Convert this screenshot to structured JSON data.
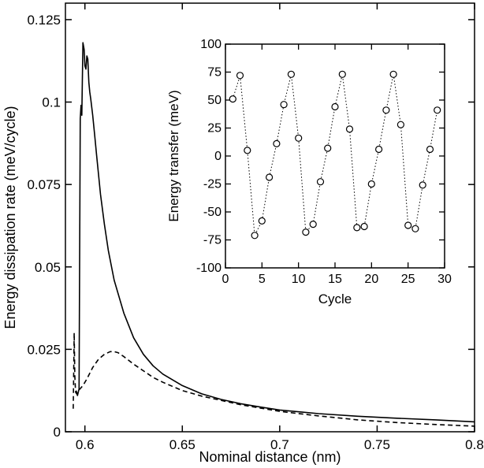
{
  "chart_data": [
    {
      "type": "line",
      "title": "",
      "xlabel": "Nominal distance (nm)",
      "ylabel": "Energy dissipation rate (meV/cycle)",
      "xlim": [
        0.59,
        0.8
      ],
      "ylim": [
        0,
        0.13
      ],
      "xticks": [
        0.6,
        0.65,
        0.7,
        0.75,
        0.8
      ],
      "xtick_labels": [
        "0.6",
        "0.65",
        "0.7",
        "0.75",
        "0.8"
      ],
      "yticks": [
        0,
        0.025,
        0.05,
        0.075,
        0.1,
        0.125
      ],
      "ytick_labels": [
        "0",
        "0.025",
        "0.05",
        "0.075",
        "0.1",
        "0.125"
      ],
      "grid": false,
      "legend": "none",
      "series": [
        {
          "name": "solid",
          "style": "solid",
          "color": "#000000",
          "x": [
            0.5955,
            0.5962,
            0.597,
            0.5976,
            0.598,
            0.5984,
            0.599,
            0.5996,
            0.6,
            0.6005,
            0.601,
            0.6015,
            0.602,
            0.6025,
            0.603,
            0.604,
            0.605,
            0.606,
            0.607,
            0.608,
            0.61,
            0.612,
            0.615,
            0.62,
            0.625,
            0.63,
            0.635,
            0.64,
            0.65,
            0.66,
            0.67,
            0.68,
            0.69,
            0.7,
            0.72,
            0.74,
            0.76,
            0.78,
            0.8
          ],
          "y": [
            0.0125,
            0.011,
            0.013,
            0.095,
            0.099,
            0.096,
            0.118,
            0.116,
            0.111,
            0.11,
            0.114,
            0.113,
            0.106,
            0.103,
            0.101,
            0.096,
            0.09,
            0.084,
            0.078,
            0.072,
            0.063,
            0.055,
            0.046,
            0.036,
            0.0285,
            0.0235,
            0.02,
            0.0175,
            0.014,
            0.0115,
            0.0098,
            0.0085,
            0.0075,
            0.0066,
            0.0055,
            0.0047,
            0.0041,
            0.0036,
            0.003
          ]
        },
        {
          "name": "dashed",
          "style": "dashed",
          "color": "#000000",
          "x": [
            0.594,
            0.5942,
            0.5945,
            0.5948,
            0.5952,
            0.5958,
            0.5965,
            0.5975,
            0.599,
            0.601,
            0.604,
            0.607,
            0.61,
            0.613,
            0.615,
            0.617,
            0.62,
            0.625,
            0.63,
            0.635,
            0.64,
            0.65,
            0.66,
            0.67,
            0.68,
            0.69,
            0.7,
            0.72,
            0.74,
            0.76,
            0.78,
            0.8
          ],
          "y": [
            0.007,
            0.016,
            0.03,
            0.017,
            0.012,
            0.0115,
            0.0125,
            0.013,
            0.014,
            0.016,
            0.0195,
            0.022,
            0.0235,
            0.0243,
            0.0243,
            0.024,
            0.0228,
            0.0205,
            0.0185,
            0.0165,
            0.015,
            0.0125,
            0.0108,
            0.0095,
            0.0082,
            0.0072,
            0.0062,
            0.0048,
            0.0036,
            0.0028,
            0.0022,
            0.0017
          ]
        }
      ]
    },
    {
      "type": "scatter",
      "title": "",
      "xlabel": "Cycle",
      "ylabel": "Energy transfer (meV)",
      "xlim": [
        0,
        30
      ],
      "ylim": [
        -100,
        100
      ],
      "xticks": [
        0,
        5,
        10,
        15,
        20,
        25,
        30
      ],
      "xtick_labels": [
        "0",
        "5",
        "10",
        "15",
        "20",
        "25",
        "30"
      ],
      "yticks": [
        -100,
        -75,
        -50,
        -25,
        0,
        25,
        50,
        75,
        100
      ],
      "ytick_labels": [
        "-100",
        "-75",
        "-50",
        "-25",
        "0",
        "25",
        "50",
        "75",
        "100"
      ],
      "grid": false,
      "legend": "none",
      "series": [
        {
          "name": "energy transfer",
          "marker": "open-circle",
          "connector": "dotted",
          "x": [
            1,
            2,
            3,
            4,
            5,
            6,
            7,
            8,
            9,
            10,
            11,
            12,
            13,
            14,
            15,
            16,
            17,
            18,
            19,
            20,
            21,
            22,
            23,
            24,
            25,
            26,
            27,
            28,
            29
          ],
          "y": [
            51,
            72,
            5,
            -71,
            -58,
            -19,
            11,
            46,
            73,
            16,
            -68,
            -61,
            -23,
            7,
            44,
            73,
            24,
            -64,
            -63,
            -25,
            6,
            41,
            73,
            28,
            -62,
            -65,
            -26,
            6,
            41
          ]
        }
      ]
    }
  ]
}
